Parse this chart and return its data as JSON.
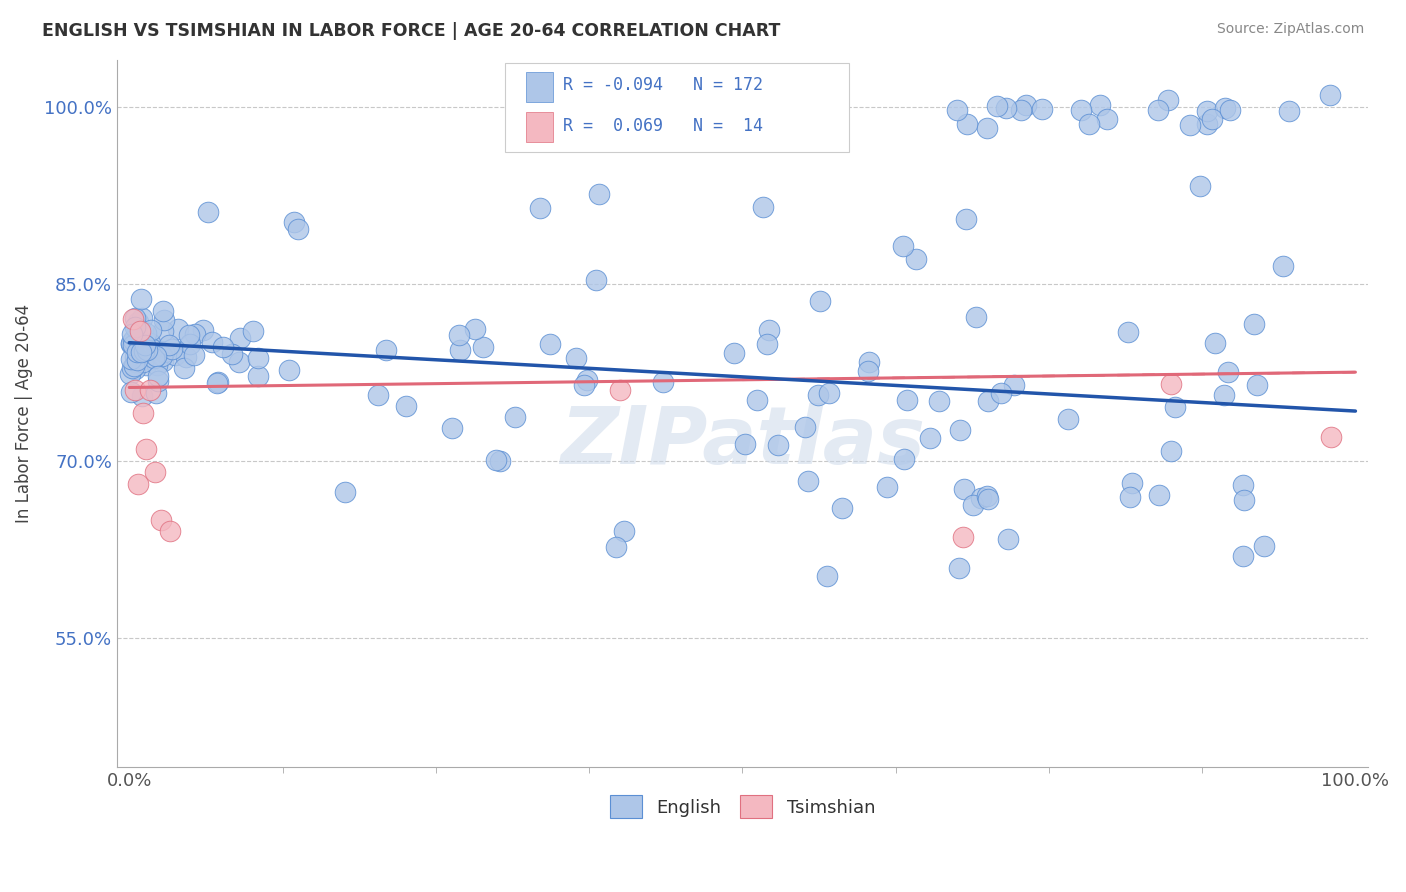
{
  "title": "ENGLISH VS TSIMSHIAN IN LABOR FORCE | AGE 20-64 CORRELATION CHART",
  "source": "Source: ZipAtlas.com",
  "ylabel": "In Labor Force | Age 20-64",
  "xlim": [
    -0.01,
    1.01
  ],
  "ylim": [
    0.44,
    1.04
  ],
  "ytick_positions": [
    0.55,
    0.7,
    0.85,
    1.0
  ],
  "ytick_labels": [
    "55.0%",
    "70.0%",
    "85.0%",
    "100.0%"
  ],
  "english_R": -0.094,
  "english_N": 172,
  "tsimshian_R": 0.069,
  "tsimshian_N": 14,
  "english_color": "#aec6e8",
  "english_edge_color": "#5b8fd4",
  "english_line_color": "#2255aa",
  "tsimshian_color": "#f4b8c1",
  "tsimshian_edge_color": "#e07080",
  "tsimshian_line_color": "#e06878",
  "watermark": "ZIPatlas",
  "legend_color": "#4472c4",
  "background_color": "#ffffff",
  "grid_color": "#c8c8c8",
  "eng_line_x0": 0.0,
  "eng_line_x1": 1.0,
  "eng_line_y0": 0.8,
  "eng_line_y1": 0.742,
  "ts_line_x0": 0.0,
  "ts_line_x1": 1.0,
  "ts_line_y0": 0.762,
  "ts_line_y1": 0.775
}
